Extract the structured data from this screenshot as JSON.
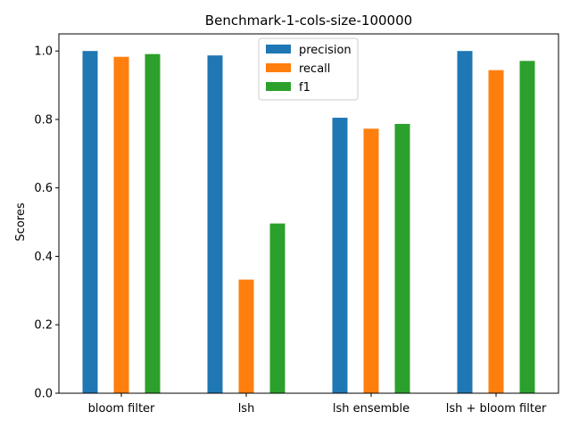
{
  "chart_data": {
    "type": "bar",
    "title": "Benchmark-1-cols-size-100000",
    "xlabel": "",
    "ylabel": "Scores",
    "categories": [
      "bloom filter",
      "lsh",
      "lsh ensemble",
      "lsh + bloom filter"
    ],
    "series": [
      {
        "name": "precision",
        "values": [
          1.0,
          0.987,
          0.805,
          1.0
        ]
      },
      {
        "name": "recall",
        "values": [
          0.983,
          0.332,
          0.773,
          0.944
        ]
      },
      {
        "name": "f1",
        "values": [
          0.991,
          0.496,
          0.787,
          0.971
        ]
      }
    ],
    "ylim": [
      0,
      1.05
    ],
    "yticks": [
      "0.0",
      "0.2",
      "0.4",
      "0.6",
      "0.8",
      "1.0"
    ],
    "grid": false,
    "legend": "upper center"
  },
  "colors": {
    "precision": "#1f77b4",
    "recall": "#ff7f0e",
    "f1": "#2ca02c"
  }
}
